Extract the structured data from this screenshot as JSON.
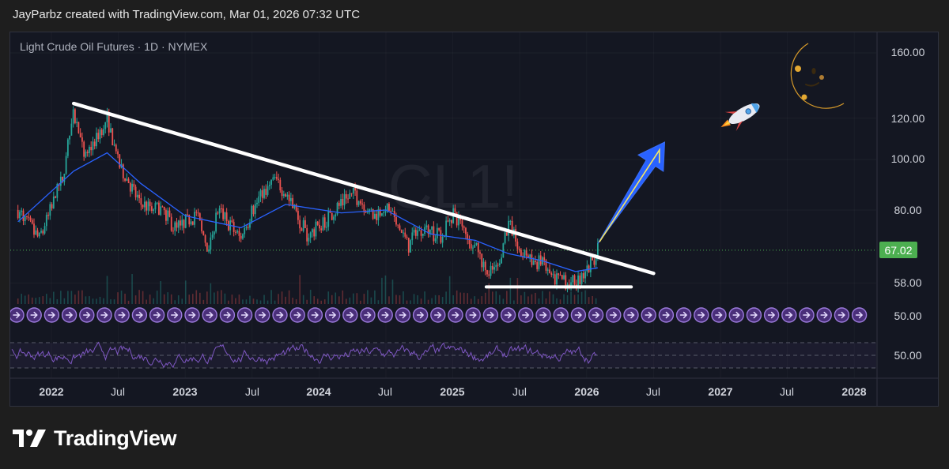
{
  "header": {
    "caption": "JayParbz created with TradingView.com, Mar 01, 2026 07:32 UTC"
  },
  "footer": {
    "brand": "TradingView"
  },
  "chart": {
    "title": "Light Crude Oil Futures · 1D · NYMEX",
    "watermark": "CL1!",
    "price_label": "67.02",
    "price_axis_ticks": [
      "160.00",
      "120.00",
      "100.00",
      "80.00",
      "58.00",
      "50.00"
    ],
    "rsi_axis_tick": "50.00",
    "time_axis_ticks": [
      "2022",
      "Jul",
      "2023",
      "Jul",
      "2024",
      "Jul",
      "2025",
      "Jul",
      "2026",
      "Jul",
      "2027",
      "Jul",
      "2028"
    ],
    "colors": {
      "background": "#141722",
      "up_candle": "#26a69a",
      "down_candle": "#ef5350",
      "moving_average": "#2962ff",
      "rsi_line": "#7e57c2",
      "trendline": "#ffffff",
      "arrow": "#2962ff",
      "arrow_highlight": "#f5e663",
      "price_label_bg": "#4caf50"
    },
    "icons": [
      "rocket-icon",
      "crescent-moon-face-icon"
    ]
  },
  "chart_data": {
    "type": "candlestick",
    "title": "Light Crude Oil Futures · 1D · NYMEX",
    "symbol": "CL1!",
    "scale": "log",
    "y_range": [
      48,
      175
    ],
    "x_range": [
      "2021-10",
      "2028-03"
    ],
    "last_price": 67.02,
    "close_path": [
      [
        "2021-10",
        80
      ],
      [
        "2021-12",
        70
      ],
      [
        "2022-02",
        92
      ],
      [
        "2022-03",
        122
      ],
      [
        "2022-04",
        100
      ],
      [
        "2022-06",
        120
      ],
      [
        "2022-07",
        98
      ],
      [
        "2022-09",
        82
      ],
      [
        "2022-11",
        80
      ],
      [
        "2022-12",
        74
      ],
      [
        "2023-02",
        78
      ],
      [
        "2023-03",
        68
      ],
      [
        "2023-04",
        80
      ],
      [
        "2023-06",
        70
      ],
      [
        "2023-07",
        80
      ],
      [
        "2023-09",
        92
      ],
      [
        "2023-10",
        86
      ],
      [
        "2023-12",
        71
      ],
      [
        "2024-02",
        78
      ],
      [
        "2024-04",
        86
      ],
      [
        "2024-06",
        78
      ],
      [
        "2024-07",
        82
      ],
      [
        "2024-09",
        68
      ],
      [
        "2024-10",
        74
      ],
      [
        "2024-12",
        71
      ],
      [
        "2025-01",
        79
      ],
      [
        "2025-03",
        68
      ],
      [
        "2025-04",
        60
      ],
      [
        "2025-05",
        62
      ],
      [
        "2025-06",
        76
      ],
      [
        "2025-07",
        66
      ],
      [
        "2025-09",
        63
      ],
      [
        "2025-10",
        59
      ],
      [
        "2025-12",
        58
      ],
      [
        "2026-01",
        61
      ],
      [
        "2026-02",
        67
      ]
    ],
    "moving_average_path": [
      [
        "2021-10",
        76
      ],
      [
        "2022-03",
        95
      ],
      [
        "2022-06",
        103
      ],
      [
        "2022-09",
        90
      ],
      [
        "2023-01",
        78
      ],
      [
        "2023-06",
        74
      ],
      [
        "2023-10",
        82
      ],
      [
        "2024-03",
        79
      ],
      [
        "2024-07",
        80
      ],
      [
        "2024-11",
        72
      ],
      [
        "2025-03",
        70
      ],
      [
        "2025-06",
        66
      ],
      [
        "2025-09",
        64
      ],
      [
        "2025-12",
        61
      ],
      [
        "2026-02",
        62
      ]
    ],
    "annotations": {
      "descending_trendline": [
        [
          "2022-03",
          128
        ],
        [
          "2026-07",
          60.5
        ]
      ],
      "support_line": [
        [
          "2025-04",
          57
        ],
        [
          "2026-05",
          57
        ]
      ],
      "projection_arrow": [
        [
          "2026-02",
          69
        ],
        [
          "2026-08",
          108
        ]
      ]
    },
    "rsi": {
      "ticks": [
        "50.00"
      ],
      "levels": [
        30,
        50,
        70
      ]
    }
  }
}
